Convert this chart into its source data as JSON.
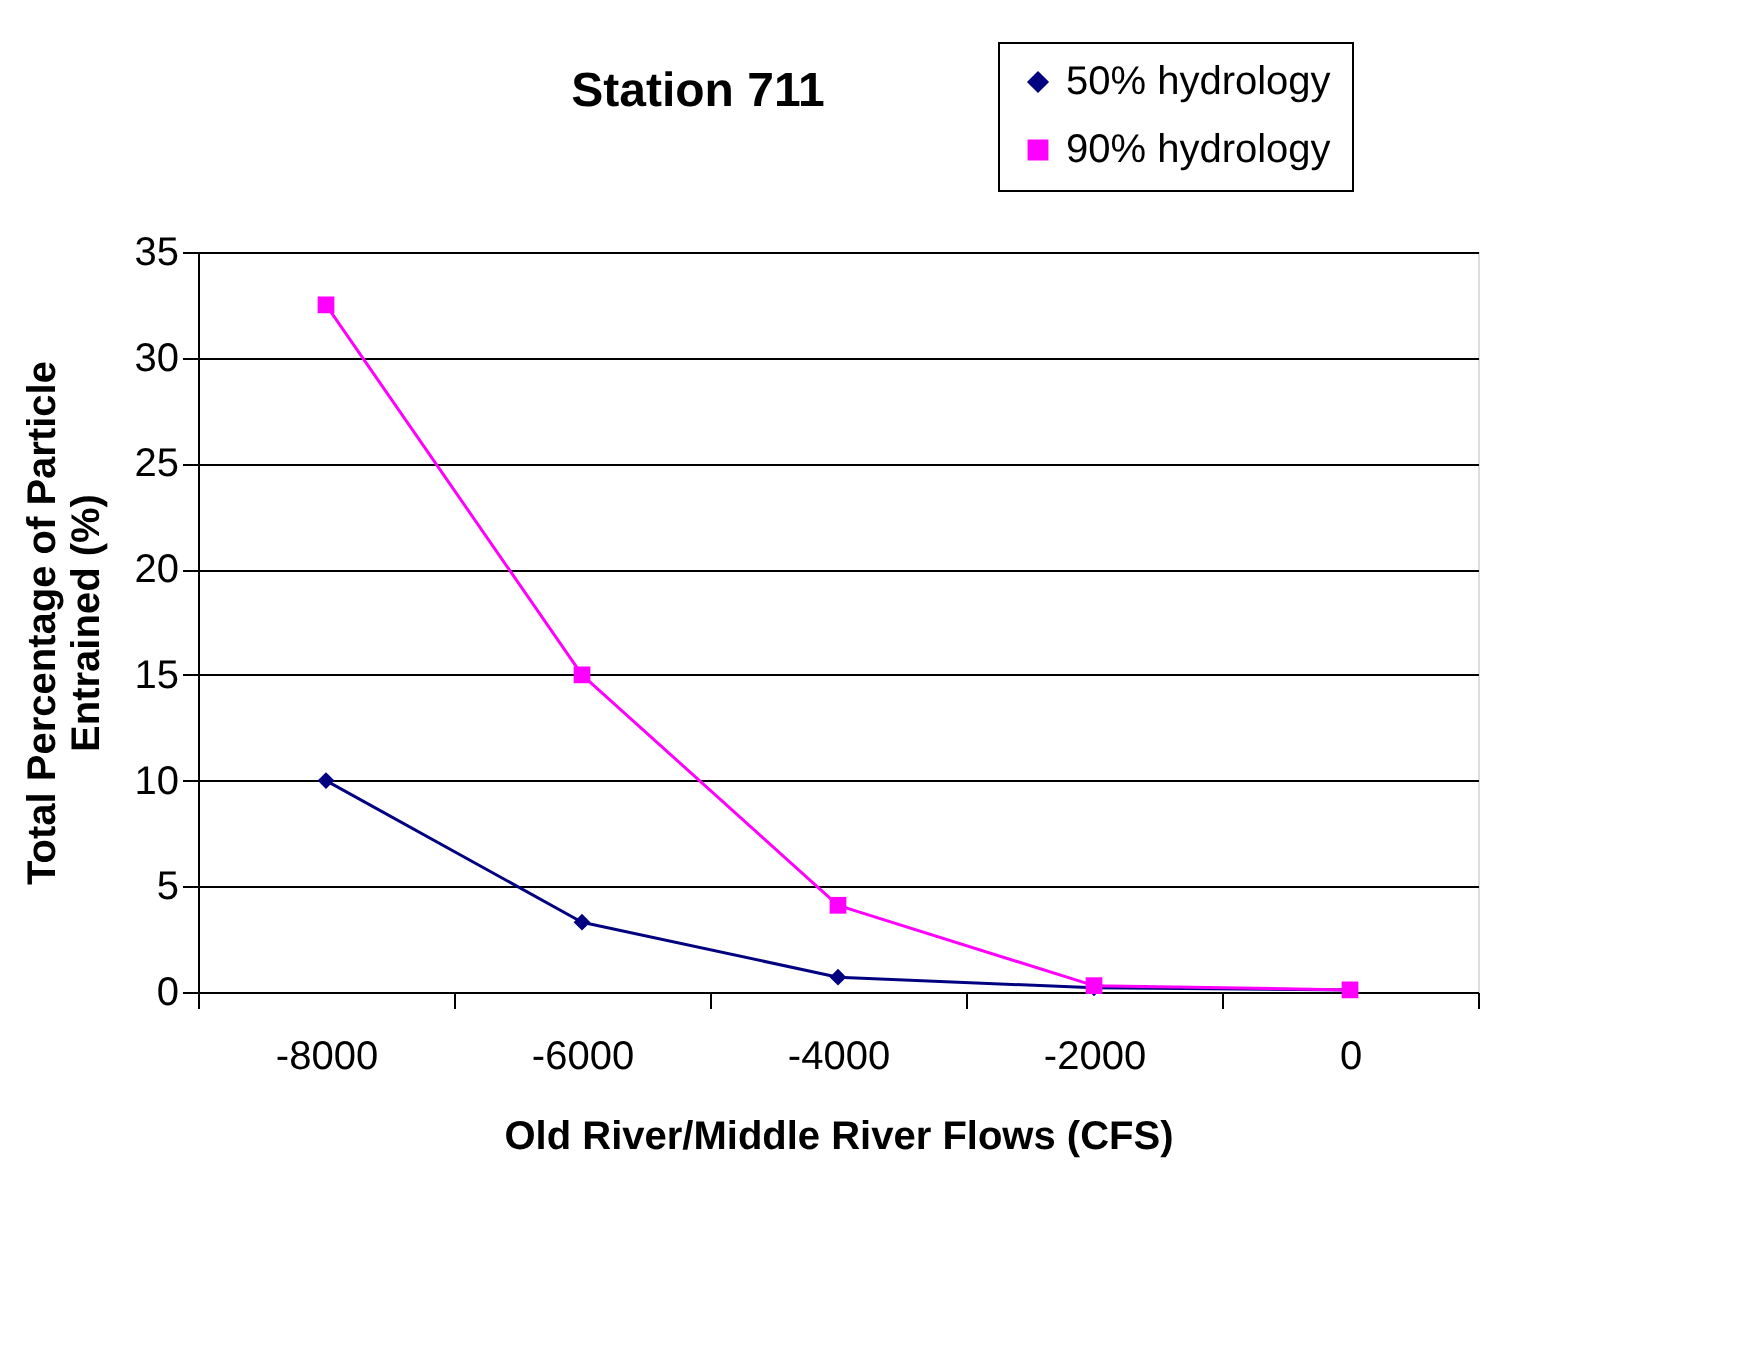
{
  "chart_data": {
    "type": "line",
    "title": "Station 711",
    "xlabel": "Old River/Middle River Flows (CFS)",
    "ylabel": "Total Percentage of Particle\nEntrained  (%)",
    "categories": [
      "-8000",
      "-6000",
      "-4000",
      "-2000",
      "0"
    ],
    "series": [
      {
        "name": "50% hydrology",
        "color": "#000080",
        "marker": "diamond",
        "values": [
          10,
          3.3,
          0.7,
          0.2,
          0.1
        ]
      },
      {
        "name": "90% hydrology",
        "color": "#ff00ff",
        "marker": "square",
        "values": [
          32.5,
          15,
          4.1,
          0.3,
          0.1
        ]
      }
    ],
    "ylim": [
      0,
      35
    ],
    "yticks": [
      0,
      5,
      10,
      15,
      20,
      25,
      30,
      35
    ],
    "grid": "y",
    "legend": "top right",
    "line_style": "solid"
  }
}
